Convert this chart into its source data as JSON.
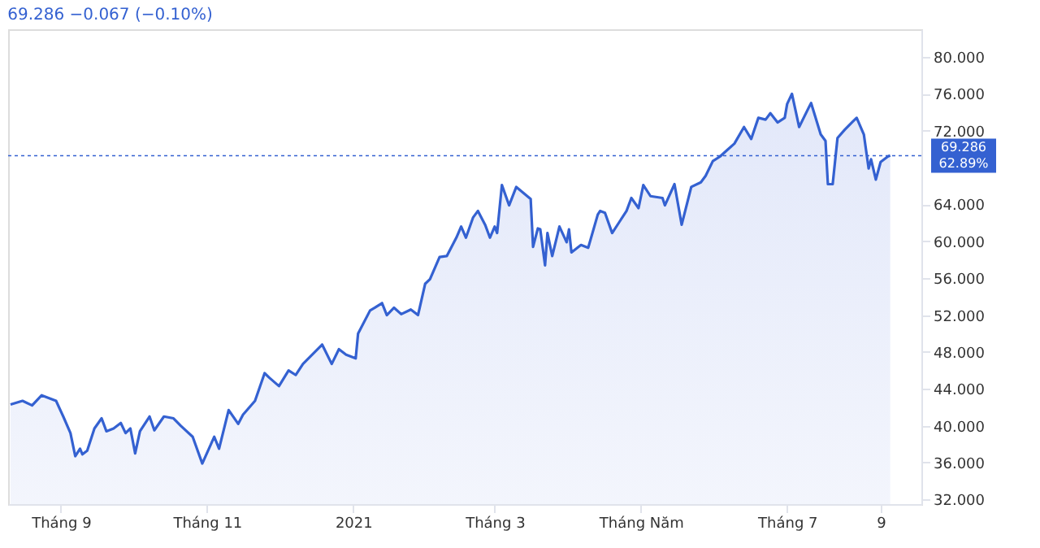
{
  "chart_data": {
    "type": "area",
    "title": "69.286 −0.067 (−0.10%)",
    "x": [
      "2020-08-11",
      "2020-08-16",
      "2020-08-20",
      "2020-08-24",
      "2020-08-30",
      "2020-09-02",
      "2020-09-05",
      "2020-09-07",
      "2020-09-09",
      "2020-09-10",
      "2020-09-12",
      "2020-09-15",
      "2020-09-18",
      "2020-09-20",
      "2020-09-23",
      "2020-09-26",
      "2020-09-28",
      "2020-09-30",
      "2020-10-02",
      "2020-10-04",
      "2020-10-08",
      "2020-10-10",
      "2020-10-14",
      "2020-10-18",
      "2020-10-21",
      "2020-10-26",
      "2020-10-30",
      "2020-11-04",
      "2020-11-06",
      "2020-11-10",
      "2020-11-14",
      "2020-11-16",
      "2020-11-21",
      "2020-11-25",
      "2020-11-27",
      "2020-12-01",
      "2020-12-05",
      "2020-12-08",
      "2020-12-11",
      "2020-12-19",
      "2020-12-23",
      "2020-12-26",
      "2020-12-29",
      "2021-01-02",
      "2021-01-03",
      "2021-01-08",
      "2021-01-10",
      "2021-01-13",
      "2021-01-15",
      "2021-01-18",
      "2021-01-21",
      "2021-01-25",
      "2021-01-28",
      "2021-01-31",
      "2021-02-02",
      "2021-02-06",
      "2021-02-09",
      "2021-02-13",
      "2021-02-15",
      "2021-02-17",
      "2021-02-20",
      "2021-02-22",
      "2021-02-25",
      "2021-02-27",
      "2021-03-01",
      "2021-03-02",
      "2021-03-04",
      "2021-03-07",
      "2021-03-10",
      "2021-03-16",
      "2021-03-17",
      "2021-03-19",
      "2021-03-20",
      "2021-03-22",
      "2021-03-23",
      "2021-03-25",
      "2021-03-28",
      "2021-03-31",
      "2021-04-01",
      "2021-04-02",
      "2021-04-06",
      "2021-04-09",
      "2021-04-13",
      "2021-04-14",
      "2021-04-16",
      "2021-04-19",
      "2021-04-22",
      "2021-04-25",
      "2021-04-27",
      "2021-04-30",
      "2021-05-02",
      "2021-05-05",
      "2021-05-10",
      "2021-05-11",
      "2021-05-15",
      "2021-05-18",
      "2021-05-22",
      "2021-05-26",
      "2021-05-28",
      "2021-05-31",
      "2021-06-03",
      "2021-06-06",
      "2021-06-09",
      "2021-06-13",
      "2021-06-16",
      "2021-06-19",
      "2021-06-22",
      "2021-06-24",
      "2021-06-27",
      "2021-06-30",
      "2021-07-01",
      "2021-07-03",
      "2021-07-06",
      "2021-07-10",
      "2021-07-11",
      "2021-07-15",
      "2021-07-17",
      "2021-07-18",
      "2021-07-20",
      "2021-07-22",
      "2021-07-25",
      "2021-07-28",
      "2021-07-30",
      "2021-08-02",
      "2021-08-04",
      "2021-08-05",
      "2021-08-07",
      "2021-08-09",
      "2021-08-12",
      "2021-08-13"
    ],
    "series": [
      {
        "color": "#3461d1",
        "values": [
          42.3,
          42.7,
          42.2,
          43.3,
          42.7,
          41.0,
          39.2,
          36.7,
          37.5,
          36.9,
          37.3,
          39.7,
          40.8,
          39.4,
          39.7,
          40.3,
          39.2,
          39.7,
          37.0,
          39.4,
          41.0,
          39.5,
          41.0,
          40.8,
          40.0,
          38.8,
          35.9,
          38.8,
          37.5,
          41.7,
          40.2,
          41.2,
          42.7,
          45.7,
          45.2,
          44.3,
          46.0,
          45.5,
          46.7,
          48.8,
          46.7,
          48.3,
          47.7,
          47.3,
          50.0,
          52.5,
          52.8,
          53.3,
          52.0,
          52.8,
          52.1,
          52.6,
          52.0,
          55.4,
          55.9,
          58.3,
          58.4,
          60.4,
          61.6,
          60.4,
          62.6,
          63.3,
          61.8,
          60.4,
          61.6,
          60.9,
          66.1,
          63.9,
          65.9,
          64.6,
          59.4,
          61.4,
          61.3,
          57.4,
          60.9,
          58.4,
          61.6,
          59.9,
          61.3,
          58.8,
          59.6,
          59.3,
          62.9,
          63.3,
          63.1,
          60.9,
          62.1,
          63.3,
          64.7,
          63.6,
          66.1,
          64.9,
          64.7,
          63.9,
          66.2,
          61.8,
          65.9,
          66.4,
          67.1,
          68.7,
          69.2,
          69.9,
          70.6,
          72.4,
          71.1,
          73.4,
          73.2,
          73.9,
          72.9,
          73.4,
          74.9,
          76.0,
          72.4,
          74.5,
          75.0,
          71.6,
          70.9,
          66.2,
          66.2,
          71.2,
          72.1,
          72.9,
          73.4,
          71.6,
          67.9,
          68.9,
          66.7,
          68.6,
          69.2,
          69.3
        ]
      }
    ],
    "xlim": [
      "2020-08-10",
      "2021-08-26"
    ],
    "xticks": [
      {
        "value": "2020-09-01",
        "label": "Tháng 9"
      },
      {
        "value": "2020-11-01",
        "label": "Tháng 11"
      },
      {
        "value": "2021-01-01",
        "label": "2021"
      },
      {
        "value": "2021-03-01",
        "label": "Tháng 3"
      },
      {
        "value": "2021-05-01",
        "label": "Tháng Năm"
      },
      {
        "value": "2021-07-01",
        "label": "Tháng 7"
      },
      {
        "value": "2021-08-09",
        "label": "9"
      }
    ],
    "ylim": [
      31.5,
      83
    ],
    "yticks": [
      {
        "value": 32,
        "label": "32.000"
      },
      {
        "value": 36,
        "label": "36.000"
      },
      {
        "value": 40,
        "label": "40.000"
      },
      {
        "value": 44,
        "label": "44.000"
      },
      {
        "value": 48,
        "label": "48.000"
      },
      {
        "value": 52,
        "label": "52.000"
      },
      {
        "value": 56,
        "label": "56.000"
      },
      {
        "value": 60,
        "label": "60.000"
      },
      {
        "value": 64,
        "label": "64.000"
      },
      {
        "value": 72,
        "label": "72.000"
      },
      {
        "value": 76,
        "label": "76.000"
      },
      {
        "value": 80,
        "label": "80.000"
      }
    ],
    "ref_lines": [
      {
        "axis": "y",
        "value": 69.286,
        "label": "69.286",
        "color": "#3461d1",
        "line_style": "dotted"
      }
    ],
    "annotations": [
      "62.89%"
    ],
    "grid": false
  }
}
